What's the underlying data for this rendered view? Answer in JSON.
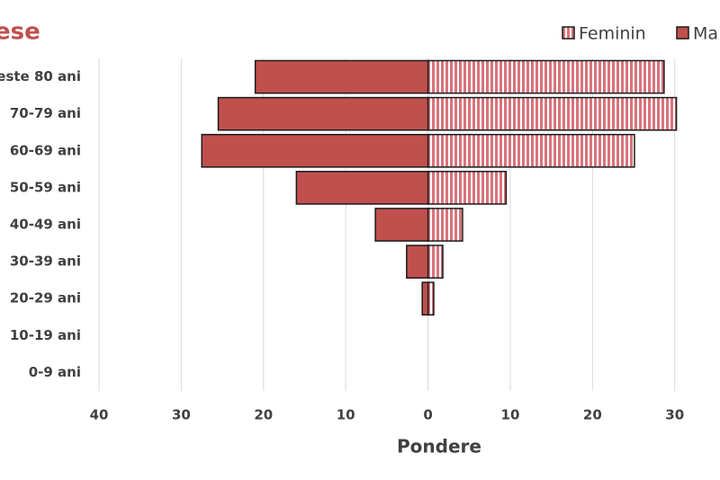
{
  "chart_data": {
    "type": "bar",
    "orientation": "horizontal",
    "title": "ese",
    "x_label": "Pondere",
    "categories": [
      "este 80 ani",
      "70-79 ani",
      "60-69 ani",
      "50-59 ani",
      "40-49 ani",
      "30-39 ani",
      "20-29 ani",
      "10-19 ani",
      "0-9 ani"
    ],
    "series": [
      {
        "name": "Feminin",
        "color": "#d9737a",
        "pattern": "stripes",
        "values": [
          28.7,
          30.2,
          25.1,
          9.5,
          4.2,
          1.8,
          0.7,
          0,
          0
        ]
      },
      {
        "name": "Ma",
        "color": "#c0504d",
        "values": [
          -21,
          -25.5,
          -27.5,
          -16,
          -6.4,
          -2.6,
          -0.7,
          0,
          0
        ]
      }
    ],
    "xlim": [
      -40,
      35.5
    ],
    "xticks": [
      {
        "value": -40,
        "label": "40"
      },
      {
        "value": -30,
        "label": "30"
      },
      {
        "value": -20,
        "label": "20"
      },
      {
        "value": -10,
        "label": "10"
      },
      0,
      10,
      20,
      30
    ],
    "grid": true
  }
}
